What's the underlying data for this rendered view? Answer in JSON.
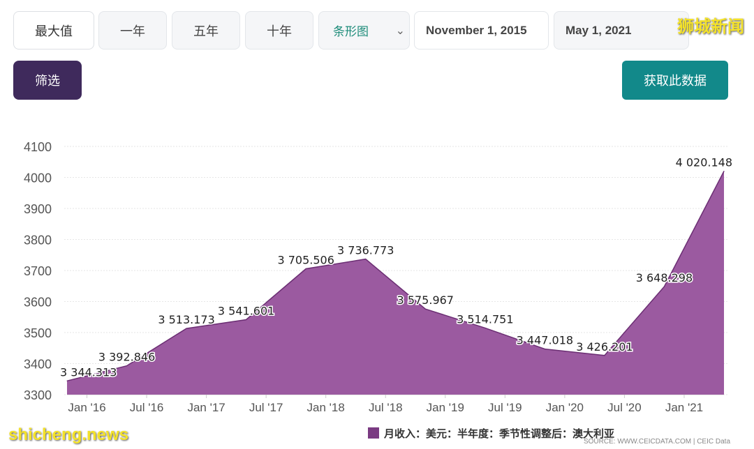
{
  "controls": {
    "range_buttons": [
      "最大值",
      "一年",
      "五年",
      "十年"
    ],
    "chart_type_select": "条形图",
    "start_date": "November 1, 2015",
    "end_date": "May 1, 2021",
    "filter_label": "筛选",
    "fetch_label": "获取此数据"
  },
  "watermarks": {
    "top_right": "狮城新闻",
    "bottom_left": "shicheng.news"
  },
  "source_note": "SOURCE: WWW.CEICDATA.COM | CEIC Data",
  "colors": {
    "area_fill": "#9b5aa0",
    "area_line": "#6b2e73",
    "filter_btn": "#3f2a5c",
    "fetch_btn": "#12898a"
  },
  "chart_data": {
    "type": "area",
    "ylim": [
      3300,
      4100
    ],
    "yticks": [
      3300,
      3400,
      3500,
      3600,
      3700,
      3800,
      3900,
      4000,
      4100
    ],
    "xticks": [
      "Jan '16",
      "Jul '16",
      "Jan '17",
      "Jul '17",
      "Jan '18",
      "Jul '18",
      "Jan '19",
      "Jul '19",
      "Jan '20",
      "Jul '20",
      "Jan '21"
    ],
    "grid": true,
    "legend": "bottom",
    "series": [
      {
        "name": "月收入：美元：半年度：季节性调整后：澳大利亚",
        "x": [
          "2015-11",
          "2016-05",
          "2016-11",
          "2017-05",
          "2017-11",
          "2018-05",
          "2018-11",
          "2019-05",
          "2019-11",
          "2020-05",
          "2020-11",
          "2021-05"
        ],
        "values": [
          3344.313,
          3392.846,
          3513.173,
          3541.601,
          3705.506,
          3736.773,
          3575.967,
          3514.751,
          3447.018,
          3426.201,
          3648.298,
          4020.148
        ],
        "labels": [
          "3 344.313",
          "3 392.846",
          "3 513.173",
          "3 541.601",
          "3 705.506",
          "3 736.773",
          "3 575.967",
          "3 514.751",
          "3 447.018",
          "3 426.201",
          "3 648.298",
          "4 020.148"
        ]
      }
    ]
  }
}
